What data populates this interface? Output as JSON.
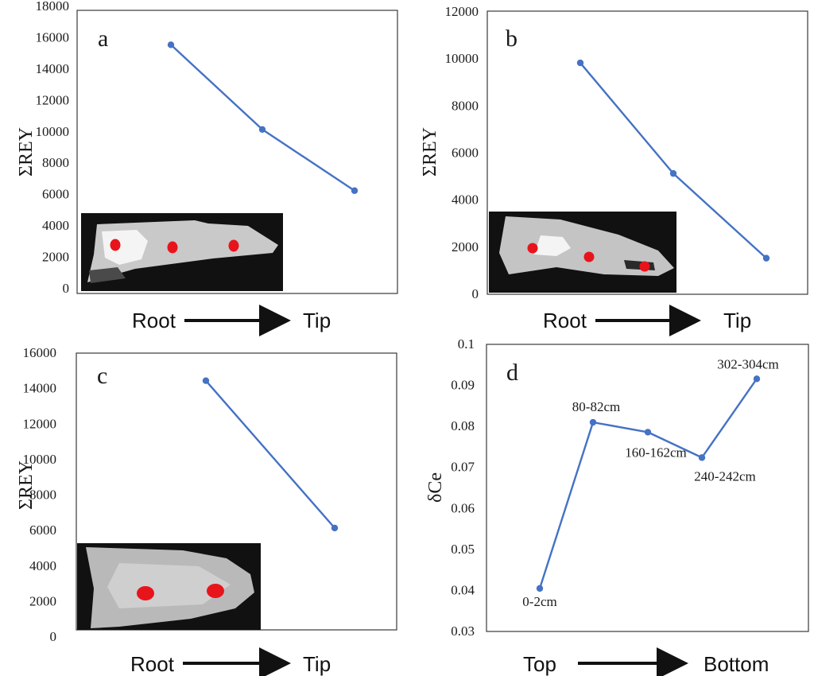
{
  "colors": {
    "line": "#4472c4",
    "frame": "#3a3a3a",
    "inset_bg": "#111111",
    "sample_dot": "#e8141c"
  },
  "chart_data": [
    {
      "type": "line",
      "panel_label": "a",
      "ylabel": "ΣREY",
      "ylim": [
        0,
        18000
      ],
      "yticks": [
        "0",
        "2000",
        "4000",
        "6000",
        "8000",
        "10000",
        "12000",
        "14000",
        "16000",
        "18000"
      ],
      "x": [
        1,
        2,
        3
      ],
      "values": [
        15500,
        10100,
        6200
      ],
      "direction": {
        "from": "Root",
        "to": "Tip"
      }
    },
    {
      "type": "line",
      "panel_label": "b",
      "ylabel": "ΣREY",
      "ylim": [
        0,
        12000
      ],
      "yticks": [
        "0",
        "2000",
        "4000",
        "6000",
        "8000",
        "10000",
        "12000"
      ],
      "x": [
        1,
        2,
        3
      ],
      "values": [
        9800,
        5100,
        1500
      ],
      "direction": {
        "from": "Root",
        "to": "Tip"
      }
    },
    {
      "type": "line",
      "panel_label": "c",
      "ylabel": "ΣREY",
      "ylim": [
        0,
        16000
      ],
      "yticks": [
        "0",
        "2000",
        "4000",
        "6000",
        "8000",
        "10000",
        "12000",
        "14000",
        "16000"
      ],
      "x": [
        1,
        2
      ],
      "values": [
        14400,
        6100
      ],
      "direction": {
        "from": "Root",
        "to": "Tip"
      }
    },
    {
      "type": "line",
      "panel_label": "d",
      "ylabel": "δCe",
      "ylim": [
        0.03,
        0.1
      ],
      "yticks": [
        "0.03",
        "0.04",
        "0.05",
        "0.06",
        "0.07",
        "0.08",
        "0.09",
        "0.1"
      ],
      "x": [
        1,
        2,
        3,
        4,
        5
      ],
      "values": [
        0.0403,
        0.0808,
        0.0784,
        0.0722,
        0.0914
      ],
      "point_labels": [
        "0-2cm",
        "80-82cm",
        "160-162cm",
        "240-242cm",
        "302-304cm"
      ],
      "direction": {
        "from": "Top",
        "to": "Bottom"
      }
    }
  ]
}
